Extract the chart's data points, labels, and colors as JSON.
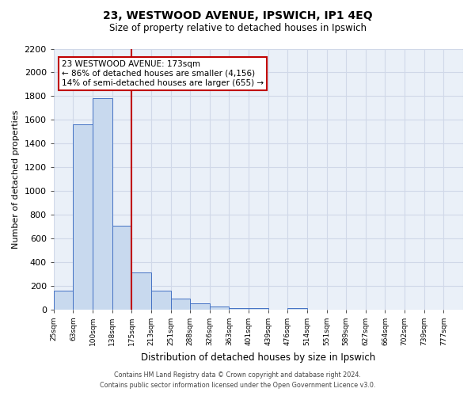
{
  "title": "23, WESTWOOD AVENUE, IPSWICH, IP1 4EQ",
  "subtitle": "Size of property relative to detached houses in Ipswich",
  "xlabel": "Distribution of detached houses by size in Ipswich",
  "ylabel": "Number of detached properties",
  "footer_line1": "Contains HM Land Registry data © Crown copyright and database right 2024.",
  "footer_line2": "Contains public sector information licensed under the Open Government Licence v3.0.",
  "bin_labels": [
    "25sqm",
    "63sqm",
    "100sqm",
    "138sqm",
    "175sqm",
    "213sqm",
    "251sqm",
    "288sqm",
    "326sqm",
    "363sqm",
    "401sqm",
    "439sqm",
    "476sqm",
    "514sqm",
    "551sqm",
    "589sqm",
    "627sqm",
    "664sqm",
    "702sqm",
    "739sqm",
    "777sqm"
  ],
  "bar_values": [
    160,
    1565,
    1780,
    710,
    315,
    160,
    90,
    50,
    25,
    15,
    15,
    0,
    15,
    0,
    0,
    0,
    0,
    0,
    0,
    0,
    0
  ],
  "bar_color": "#c8d9ee",
  "bar_edge_color": "#4472c4",
  "vline_x": 4,
  "vline_color": "#c00000",
  "annotation_title": "23 WESTWOOD AVENUE: 173sqm",
  "annotation_line1": "← 86% of detached houses are smaller (4,156)",
  "annotation_line2": "14% of semi-detached houses are larger (655) →",
  "annotation_box_color": "#ffffff",
  "annotation_box_edge": "#c00000",
  "ylim": [
    0,
    2200
  ],
  "yticks": [
    0,
    200,
    400,
    600,
    800,
    1000,
    1200,
    1400,
    1600,
    1800,
    2000,
    2200
  ],
  "grid_color": "#d0d8e8",
  "bg_color": "#eaf0f8",
  "fig_bg": "#ffffff"
}
